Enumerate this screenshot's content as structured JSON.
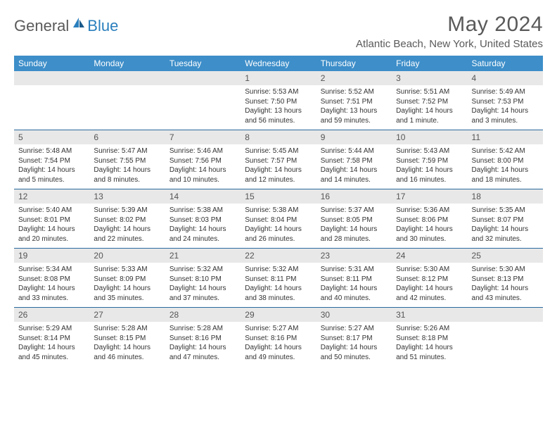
{
  "brand": {
    "part1": "General",
    "part2": "Blue"
  },
  "title": "May 2024",
  "location": "Atlantic Beach, New York, United States",
  "headers": [
    "Sunday",
    "Monday",
    "Tuesday",
    "Wednesday",
    "Thursday",
    "Friday",
    "Saturday"
  ],
  "colors": {
    "header_bg": "#3d8ec9",
    "header_text": "#ffffff",
    "daynum_bg": "#e8e8e8",
    "week_border": "#2a6a9e",
    "brand_blue": "#2a7fbd",
    "text": "#333333"
  },
  "weeks": [
    [
      null,
      null,
      null,
      {
        "n": "1",
        "sr": "5:53 AM",
        "ss": "7:50 PM",
        "dl": "13 hours and 56 minutes."
      },
      {
        "n": "2",
        "sr": "5:52 AM",
        "ss": "7:51 PM",
        "dl": "13 hours and 59 minutes."
      },
      {
        "n": "3",
        "sr": "5:51 AM",
        "ss": "7:52 PM",
        "dl": "14 hours and 1 minute."
      },
      {
        "n": "4",
        "sr": "5:49 AM",
        "ss": "7:53 PM",
        "dl": "14 hours and 3 minutes."
      }
    ],
    [
      {
        "n": "5",
        "sr": "5:48 AM",
        "ss": "7:54 PM",
        "dl": "14 hours and 5 minutes."
      },
      {
        "n": "6",
        "sr": "5:47 AM",
        "ss": "7:55 PM",
        "dl": "14 hours and 8 minutes."
      },
      {
        "n": "7",
        "sr": "5:46 AM",
        "ss": "7:56 PM",
        "dl": "14 hours and 10 minutes."
      },
      {
        "n": "8",
        "sr": "5:45 AM",
        "ss": "7:57 PM",
        "dl": "14 hours and 12 minutes."
      },
      {
        "n": "9",
        "sr": "5:44 AM",
        "ss": "7:58 PM",
        "dl": "14 hours and 14 minutes."
      },
      {
        "n": "10",
        "sr": "5:43 AM",
        "ss": "7:59 PM",
        "dl": "14 hours and 16 minutes."
      },
      {
        "n": "11",
        "sr": "5:42 AM",
        "ss": "8:00 PM",
        "dl": "14 hours and 18 minutes."
      }
    ],
    [
      {
        "n": "12",
        "sr": "5:40 AM",
        "ss": "8:01 PM",
        "dl": "14 hours and 20 minutes."
      },
      {
        "n": "13",
        "sr": "5:39 AM",
        "ss": "8:02 PM",
        "dl": "14 hours and 22 minutes."
      },
      {
        "n": "14",
        "sr": "5:38 AM",
        "ss": "8:03 PM",
        "dl": "14 hours and 24 minutes."
      },
      {
        "n": "15",
        "sr": "5:38 AM",
        "ss": "8:04 PM",
        "dl": "14 hours and 26 minutes."
      },
      {
        "n": "16",
        "sr": "5:37 AM",
        "ss": "8:05 PM",
        "dl": "14 hours and 28 minutes."
      },
      {
        "n": "17",
        "sr": "5:36 AM",
        "ss": "8:06 PM",
        "dl": "14 hours and 30 minutes."
      },
      {
        "n": "18",
        "sr": "5:35 AM",
        "ss": "8:07 PM",
        "dl": "14 hours and 32 minutes."
      }
    ],
    [
      {
        "n": "19",
        "sr": "5:34 AM",
        "ss": "8:08 PM",
        "dl": "14 hours and 33 minutes."
      },
      {
        "n": "20",
        "sr": "5:33 AM",
        "ss": "8:09 PM",
        "dl": "14 hours and 35 minutes."
      },
      {
        "n": "21",
        "sr": "5:32 AM",
        "ss": "8:10 PM",
        "dl": "14 hours and 37 minutes."
      },
      {
        "n": "22",
        "sr": "5:32 AM",
        "ss": "8:11 PM",
        "dl": "14 hours and 38 minutes."
      },
      {
        "n": "23",
        "sr": "5:31 AM",
        "ss": "8:11 PM",
        "dl": "14 hours and 40 minutes."
      },
      {
        "n": "24",
        "sr": "5:30 AM",
        "ss": "8:12 PM",
        "dl": "14 hours and 42 minutes."
      },
      {
        "n": "25",
        "sr": "5:30 AM",
        "ss": "8:13 PM",
        "dl": "14 hours and 43 minutes."
      }
    ],
    [
      {
        "n": "26",
        "sr": "5:29 AM",
        "ss": "8:14 PM",
        "dl": "14 hours and 45 minutes."
      },
      {
        "n": "27",
        "sr": "5:28 AM",
        "ss": "8:15 PM",
        "dl": "14 hours and 46 minutes."
      },
      {
        "n": "28",
        "sr": "5:28 AM",
        "ss": "8:16 PM",
        "dl": "14 hours and 47 minutes."
      },
      {
        "n": "29",
        "sr": "5:27 AM",
        "ss": "8:16 PM",
        "dl": "14 hours and 49 minutes."
      },
      {
        "n": "30",
        "sr": "5:27 AM",
        "ss": "8:17 PM",
        "dl": "14 hours and 50 minutes."
      },
      {
        "n": "31",
        "sr": "5:26 AM",
        "ss": "8:18 PM",
        "dl": "14 hours and 51 minutes."
      },
      null
    ]
  ],
  "labels": {
    "sunrise": "Sunrise: ",
    "sunset": "Sunset: ",
    "daylight": "Daylight: "
  }
}
